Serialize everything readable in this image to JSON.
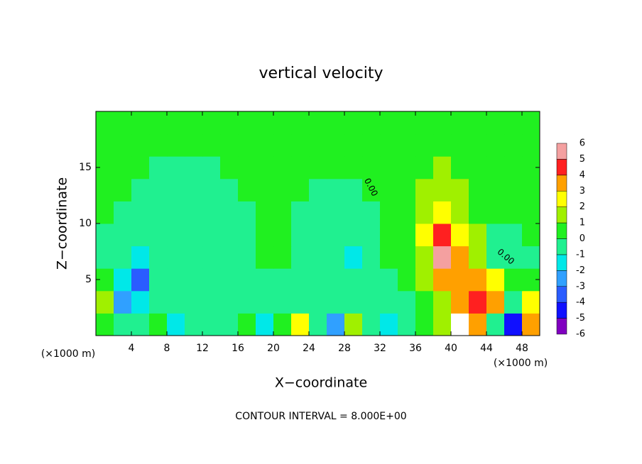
{
  "chart_data": {
    "type": "heatmap",
    "title": "vertical velocity",
    "x_label": "X−coordinate",
    "y_label": "Z−coordinate",
    "x_unit_left": "(×1000 m)",
    "x_unit_right": "(×1000 m)",
    "footer": "CONTOUR INTERVAL = 8.000E+00",
    "contour_labels": [
      "0.00",
      "0.00"
    ],
    "xlim": [
      0,
      50
    ],
    "ylim": [
      0,
      20
    ],
    "xticks": [
      4,
      8,
      12,
      16,
      20,
      24,
      28,
      32,
      36,
      40,
      44,
      48
    ],
    "yticks": [
      5,
      10,
      15
    ],
    "x": [
      1,
      3,
      5,
      7,
      9,
      11,
      13,
      15,
      17,
      19,
      21,
      23,
      25,
      27,
      29,
      31,
      33,
      35,
      37,
      39,
      41,
      43,
      45,
      47,
      49
    ],
    "y": [
      1,
      3,
      5,
      7,
      9,
      11,
      13,
      15,
      17,
      19
    ],
    "z": [
      [
        0.5,
        -1,
        -0.5,
        0.5,
        -1.5,
        -0.5,
        -1,
        -0.5,
        0.5,
        -2,
        0.5,
        2,
        -0.5,
        -3,
        1,
        -1,
        -1.5,
        -0.5,
        0.5,
        1,
        6.5,
        3,
        -1,
        -5,
        3
      ],
      [
        1,
        -3,
        -2,
        -0.5,
        -1,
        -0.5,
        -0.5,
        -0.5,
        -1,
        -0.5,
        -0.5,
        -0.5,
        -0.5,
        -0.5,
        -0.5,
        -0.5,
        -0.5,
        -0.5,
        0.5,
        1.5,
        3,
        4,
        3,
        -1,
        2
      ],
      [
        0,
        -2,
        -3.5,
        -1,
        -0.5,
        -0.5,
        -0.5,
        -0.5,
        -0.5,
        -0.5,
        -0.5,
        -0.5,
        -0.5,
        -0.5,
        -1,
        -0.5,
        -0.2,
        0.2,
        1,
        3,
        3,
        3,
        2,
        0.5,
        0.5
      ],
      [
        -0.5,
        -1,
        -1.5,
        -0.8,
        -0.5,
        -0.5,
        -0.5,
        -0.5,
        -0.3,
        0.2,
        0.3,
        -0.3,
        -0.5,
        -1,
        -1.5,
        -0.8,
        0.2,
        0.5,
        1.5,
        5.5,
        3.5,
        1.5,
        -0.5,
        -0.5,
        -0.2
      ],
      [
        -0.3,
        -0.5,
        -0.8,
        -0.7,
        -0.5,
        -0.5,
        -0.5,
        -0.4,
        -0.3,
        0.2,
        0.2,
        -0.3,
        -0.5,
        -0.7,
        -0.8,
        -0.5,
        0.3,
        0.6,
        2,
        4,
        2.5,
        1,
        -0.5,
        -0.5,
        0.2
      ],
      [
        0.2,
        -0.2,
        -0.4,
        -0.5,
        -0.5,
        -0.5,
        -0.4,
        -0.3,
        -0.2,
        0.2,
        0.2,
        -0.2,
        -0.3,
        -0.4,
        -0.4,
        -0.2,
        0.3,
        0.6,
        1.5,
        2.5,
        1.5,
        0.8,
        0.3,
        0.3,
        0.3
      ],
      [
        0.3,
        0.2,
        -0.2,
        -0.3,
        -0.3,
        -0.3,
        -0.3,
        -0.2,
        0.2,
        0.2,
        0.2,
        0.2,
        -0.2,
        -0.3,
        -0.3,
        0.2,
        0.4,
        0.6,
        1,
        1.5,
        1,
        0.6,
        0.4,
        0.3,
        0.3
      ],
      [
        0.4,
        0.3,
        0.2,
        -0.2,
        -0.2,
        -0.2,
        -0.2,
        0.2,
        0.3,
        0.3,
        0.3,
        0.3,
        0.2,
        0.2,
        0.2,
        0.3,
        0.5,
        0.7,
        0.9,
        1.1,
        0.9,
        0.6,
        0.4,
        0.3,
        0.3
      ],
      [
        0.4,
        0.4,
        0.3,
        0.2,
        0.2,
        0.2,
        0.2,
        0.3,
        0.3,
        0.3,
        0.3,
        0.3,
        0.3,
        0.3,
        0.3,
        0.4,
        0.5,
        0.6,
        0.7,
        0.8,
        0.7,
        0.5,
        0.4,
        0.3,
        0.3
      ],
      [
        0.4,
        0.4,
        0.4,
        0.3,
        0.3,
        0.3,
        0.3,
        0.3,
        0.3,
        0.3,
        0.3,
        0.3,
        0.3,
        0.3,
        0.3,
        0.3,
        0.4,
        0.5,
        0.5,
        0.5,
        0.5,
        0.4,
        0.4,
        0.3,
        0.3
      ]
    ],
    "levels": [
      -6,
      -5,
      -4,
      -3,
      -2,
      -1,
      0,
      1,
      2,
      3,
      4,
      5,
      6
    ],
    "colors": [
      "#8000c0",
      "#1010ff",
      "#2a5cff",
      "#30a0ff",
      "#00e8e8",
      "#20f090",
      "#20f020",
      "#a0f000",
      "#ffff00",
      "#ffa000",
      "#ff2020",
      "#f4a0a0"
    ],
    "above_color": "#ffffff"
  }
}
